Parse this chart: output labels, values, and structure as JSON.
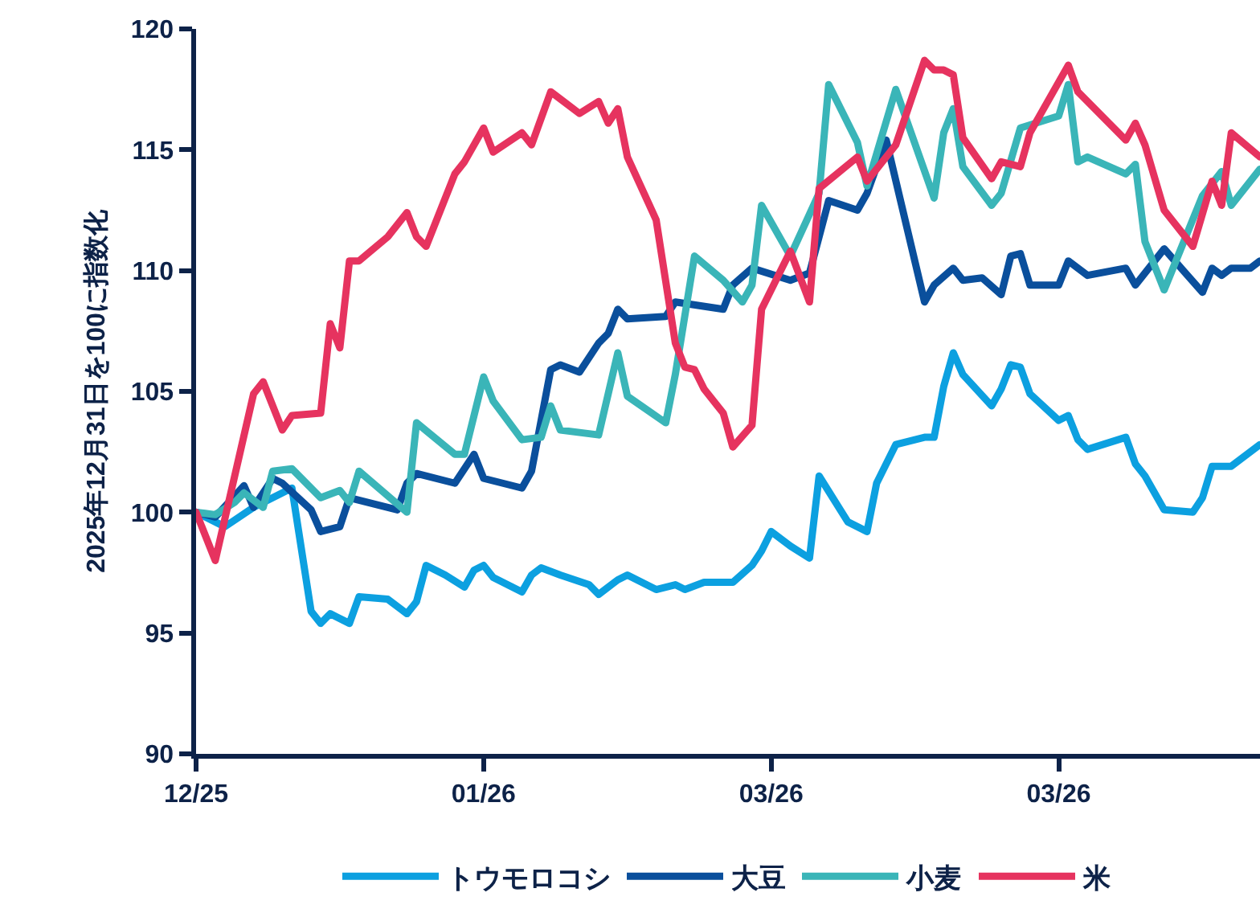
{
  "chart_data": {
    "type": "line",
    "ylabel": "2025年12月31日を100に指数化",
    "xlim": [
      "2025-12-31",
      "2026-04-21"
    ],
    "xticks": [
      {
        "value": "2025-12-31",
        "label": "12/25"
      },
      {
        "value": "2026-01-30",
        "label": "01/26"
      },
      {
        "value": "2026-03-01",
        "label": "03/26"
      },
      {
        "value": "2026-03-31",
        "label": "03/26"
      }
    ],
    "ylim": [
      90,
      120
    ],
    "yticks": [
      90,
      95,
      100,
      105,
      110,
      115,
      120
    ],
    "grid": false,
    "legend": "bottom",
    "marker": "none",
    "line_style": "solid",
    "series": [
      {
        "name": "トウモロコシ",
        "color": "#0ca0e0",
        "x": [
          "2025-12-31",
          "2026-01-03",
          "2026-01-06",
          "2026-01-10",
          "2026-01-12",
          "2026-01-13",
          "2026-01-14",
          "2026-01-16",
          "2026-01-17",
          "2026-01-20",
          "2026-01-22",
          "2026-01-23",
          "2026-01-24",
          "2026-01-26",
          "2026-01-28",
          "2026-01-29",
          "2026-01-30",
          "2026-01-31",
          "2026-02-03",
          "2026-02-04",
          "2026-02-05",
          "2026-02-07",
          "2026-02-10",
          "2026-02-11",
          "2026-02-13",
          "2026-02-14",
          "2026-02-17",
          "2026-02-19",
          "2026-02-20",
          "2026-02-22",
          "2026-02-25",
          "2026-02-27",
          "2026-02-28",
          "2026-03-01",
          "2026-03-03",
          "2026-03-05",
          "2026-03-06",
          "2026-03-09",
          "2026-03-11",
          "2026-03-12",
          "2026-03-14",
          "2026-03-17",
          "2026-03-18",
          "2026-03-19",
          "2026-03-20",
          "2026-03-21",
          "2026-03-24",
          "2026-03-25",
          "2026-03-26",
          "2026-03-27",
          "2026-03-28",
          "2026-03-31",
          "2026-04-01",
          "2026-04-02",
          "2026-04-03",
          "2026-04-07",
          "2026-04-08",
          "2026-04-09",
          "2026-04-11",
          "2026-04-14",
          "2026-04-15",
          "2026-04-16",
          "2026-04-17",
          "2026-04-18",
          "2026-04-21"
        ],
        "values": [
          100,
          99.4,
          100.2,
          101.0,
          95.9,
          95.4,
          95.8,
          95.4,
          96.5,
          96.4,
          95.8,
          96.3,
          97.8,
          97.4,
          96.9,
          97.6,
          97.8,
          97.3,
          96.7,
          97.4,
          97.7,
          97.4,
          97.0,
          96.6,
          97.2,
          97.4,
          96.8,
          97.0,
          96.8,
          97.1,
          97.1,
          97.8,
          98.4,
          99.2,
          98.6,
          98.1,
          101.5,
          99.6,
          99.2,
          101.2,
          102.8,
          103.1,
          103.1,
          105.2,
          106.6,
          105.7,
          104.4,
          105.1,
          106.1,
          106.0,
          104.9,
          103.8,
          104.0,
          103.0,
          102.6,
          103.1,
          102.0,
          101.5,
          100.1,
          100.0,
          100.6,
          101.9,
          101.9,
          101.9,
          102.8
        ]
      },
      {
        "name": "大豆",
        "color": "#0a4f9c",
        "x": [
          "2025-12-31",
          "2026-01-02",
          "2026-01-05",
          "2026-01-06",
          "2026-01-08",
          "2026-01-09",
          "2026-01-12",
          "2026-01-13",
          "2026-01-15",
          "2026-01-16",
          "2026-01-21",
          "2026-01-22",
          "2026-01-23",
          "2026-01-27",
          "2026-01-29",
          "2026-01-30",
          "2026-02-03",
          "2026-02-04",
          "2026-02-06",
          "2026-02-07",
          "2026-02-09",
          "2026-02-11",
          "2026-02-12",
          "2026-02-13",
          "2026-02-14",
          "2026-02-18",
          "2026-02-19",
          "2026-02-24",
          "2026-02-25",
          "2026-02-27",
          "2026-03-03",
          "2026-03-05",
          "2026-03-07",
          "2026-03-10",
          "2026-03-11",
          "2026-03-13",
          "2026-03-17",
          "2026-03-18",
          "2026-03-20",
          "2026-03-21",
          "2026-03-23",
          "2026-03-25",
          "2026-03-26",
          "2026-03-27",
          "2026-03-28",
          "2026-03-31",
          "2026-04-01",
          "2026-04-02",
          "2026-04-03",
          "2026-04-07",
          "2026-04-08",
          "2026-04-11",
          "2026-04-13",
          "2026-04-15",
          "2026-04-16",
          "2026-04-17",
          "2026-04-18",
          "2026-04-20",
          "2026-04-21"
        ],
        "values": [
          100,
          99.8,
          101.1,
          100.2,
          101.4,
          101.2,
          100.1,
          99.2,
          99.4,
          100.6,
          100.1,
          101.2,
          101.6,
          101.2,
          102.4,
          101.4,
          101.0,
          101.7,
          105.9,
          106.1,
          105.8,
          107.0,
          107.4,
          108.4,
          108.0,
          108.1,
          108.7,
          108.4,
          109.4,
          110.1,
          109.6,
          109.9,
          112.9,
          112.5,
          113.2,
          115.4,
          108.7,
          109.4,
          110.1,
          109.6,
          109.7,
          109.0,
          110.6,
          110.7,
          109.4,
          109.4,
          110.4,
          110.1,
          109.8,
          110.1,
          109.4,
          110.9,
          110.0,
          109.1,
          110.1,
          109.8,
          110.1,
          110.1,
          110.4
        ]
      },
      {
        "name": "小麦",
        "color": "#3ab5b8",
        "x": [
          "2025-12-31",
          "2026-01-02",
          "2026-01-04",
          "2026-01-05",
          "2026-01-07",
          "2026-01-08",
          "2026-01-10",
          "2026-01-13",
          "2026-01-15",
          "2026-01-16",
          "2026-01-17",
          "2026-01-22",
          "2026-01-23",
          "2026-01-27",
          "2026-01-28",
          "2026-01-30",
          "2026-01-31",
          "2026-02-03",
          "2026-02-05",
          "2026-02-06",
          "2026-02-07",
          "2026-02-11",
          "2026-02-13",
          "2026-02-14",
          "2026-02-18",
          "2026-02-19",
          "2026-02-21",
          "2026-02-24",
          "2026-02-26",
          "2026-02-27",
          "2026-02-28",
          "2026-03-03",
          "2026-03-06",
          "2026-03-07",
          "2026-03-10",
          "2026-03-11",
          "2026-03-14",
          "2026-03-18",
          "2026-03-19",
          "2026-03-20",
          "2026-03-21",
          "2026-03-24",
          "2026-03-25",
          "2026-03-27",
          "2026-03-31",
          "2026-04-01",
          "2026-04-02",
          "2026-04-03",
          "2026-04-07",
          "2026-04-08",
          "2026-04-09",
          "2026-04-11",
          "2026-04-15",
          "2026-04-17",
          "2026-04-18",
          "2026-04-21"
        ],
        "values": [
          100,
          99.9,
          100.4,
          100.8,
          100.2,
          101.7,
          101.8,
          100.6,
          100.9,
          100.4,
          101.7,
          100.0,
          103.7,
          102.4,
          102.4,
          105.6,
          104.6,
          103.0,
          103.1,
          104.4,
          103.4,
          103.2,
          106.6,
          104.8,
          103.7,
          105.7,
          110.6,
          109.6,
          108.7,
          109.4,
          112.7,
          110.6,
          113.2,
          117.7,
          115.3,
          113.5,
          117.5,
          113.0,
          115.7,
          116.7,
          114.3,
          112.7,
          113.2,
          115.9,
          116.4,
          117.7,
          114.5,
          114.7,
          114.0,
          114.4,
          111.2,
          109.2,
          113.1,
          114.1,
          112.7,
          114.2
        ]
      },
      {
        "name": "米",
        "color": "#e6335f",
        "x": [
          "2025-12-31",
          "2026-01-02",
          "2026-01-06",
          "2026-01-07",
          "2026-01-09",
          "2026-01-10",
          "2026-01-13",
          "2026-01-14",
          "2026-01-15",
          "2026-01-16",
          "2026-01-17",
          "2026-01-20",
          "2026-01-22",
          "2026-01-23",
          "2026-01-24",
          "2026-01-27",
          "2026-01-28",
          "2026-01-30",
          "2026-01-31",
          "2026-02-03",
          "2026-02-04",
          "2026-02-06",
          "2026-02-07",
          "2026-02-09",
          "2026-02-11",
          "2026-02-12",
          "2026-02-13",
          "2026-02-14",
          "2026-02-17",
          "2026-02-19",
          "2026-02-20",
          "2026-02-21",
          "2026-02-22",
          "2026-02-24",
          "2026-02-25",
          "2026-02-27",
          "2026-02-28",
          "2026-03-03",
          "2026-03-05",
          "2026-03-06",
          "2026-03-10",
          "2026-03-11",
          "2026-03-14",
          "2026-03-17",
          "2026-03-18",
          "2026-03-19",
          "2026-03-20",
          "2026-03-21",
          "2026-03-24",
          "2026-03-25",
          "2026-03-27",
          "2026-03-28",
          "2026-04-01",
          "2026-04-02",
          "2026-04-07",
          "2026-04-08",
          "2026-04-09",
          "2026-04-11",
          "2026-04-14",
          "2026-04-16",
          "2026-04-17",
          "2026-04-18",
          "2026-04-21"
        ],
        "values": [
          100,
          98.0,
          104.9,
          105.4,
          103.4,
          104.0,
          104.1,
          107.8,
          106.8,
          110.4,
          110.4,
          111.4,
          112.4,
          111.4,
          111.0,
          114.0,
          114.5,
          115.9,
          114.9,
          115.7,
          115.2,
          117.4,
          117.1,
          116.5,
          117.0,
          116.1,
          116.7,
          114.7,
          112.1,
          107.0,
          106.0,
          105.9,
          105.1,
          104.1,
          102.7,
          103.6,
          108.4,
          110.8,
          108.7,
          113.4,
          114.7,
          113.7,
          115.2,
          118.7,
          118.3,
          118.3,
          118.1,
          115.5,
          113.8,
          114.5,
          114.3,
          115.7,
          118.5,
          117.4,
          115.4,
          116.1,
          115.2,
          112.5,
          111.0,
          113.7,
          112.7,
          115.7,
          114.7
        ]
      }
    ]
  }
}
